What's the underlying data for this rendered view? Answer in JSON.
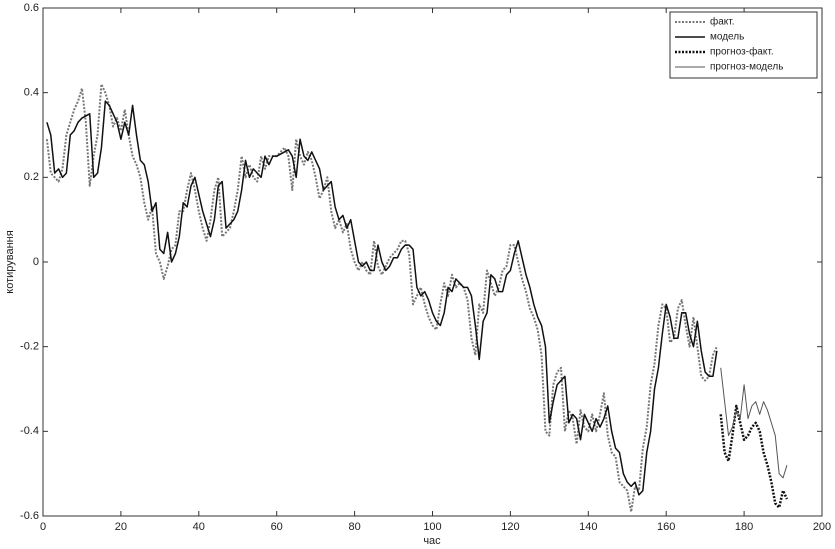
{
  "chart_data": {
    "type": "line",
    "x_label": "час",
    "y_label": "котирування",
    "xlim": [
      0,
      200
    ],
    "xticks": [
      0,
      20,
      40,
      60,
      80,
      100,
      120,
      140,
      160,
      180,
      200
    ],
    "ylim": [
      -0.6,
      0.6
    ],
    "yticks": [
      -0.6,
      -0.4,
      -0.2,
      0,
      0.2,
      0.4,
      0.6
    ],
    "grid": false,
    "legend": "upper right",
    "series": [
      {
        "name": "факт.",
        "color": "#777777",
        "line_style": "dotted",
        "x": [
          1,
          2,
          3,
          4,
          5,
          6,
          7,
          8,
          9,
          10,
          11,
          12,
          13,
          14,
          15,
          16,
          17,
          18,
          19,
          20,
          21,
          22,
          23,
          24,
          25,
          26,
          27,
          28,
          29,
          30,
          31,
          32,
          33,
          34,
          35,
          36,
          37,
          38,
          39,
          40,
          41,
          42,
          43,
          44,
          45,
          46,
          47,
          48,
          49,
          50,
          51,
          52,
          53,
          54,
          55,
          56,
          57,
          58,
          59,
          60,
          61,
          62,
          63,
          64,
          65,
          66,
          67,
          68,
          69,
          70,
          71,
          72,
          73,
          74,
          75,
          76,
          77,
          78,
          79,
          80,
          81,
          82,
          83,
          84,
          85,
          86,
          87,
          88,
          89,
          90,
          91,
          92,
          93,
          94,
          95,
          96,
          97,
          98,
          99,
          100,
          101,
          102,
          103,
          104,
          105,
          106,
          107,
          108,
          109,
          110,
          111,
          112,
          113,
          114,
          115,
          116,
          117,
          118,
          119,
          120,
          121,
          122,
          123,
          124,
          125,
          126,
          127,
          128,
          129,
          130,
          131,
          132,
          133,
          134,
          135,
          136,
          137,
          138,
          139,
          140,
          141,
          142,
          143,
          144,
          145,
          146,
          147,
          148,
          149,
          150,
          151,
          152,
          153,
          154,
          155,
          156,
          157,
          158,
          159,
          160,
          161,
          162,
          163,
          164,
          165,
          166,
          167,
          168,
          169,
          170,
          171,
          172,
          173
        ],
        "values": [
          0.29,
          0.21,
          0.2,
          0.19,
          0.22,
          0.3,
          0.33,
          0.36,
          0.38,
          0.41,
          0.33,
          0.18,
          0.25,
          0.3,
          0.42,
          0.4,
          0.37,
          0.32,
          0.34,
          0.31,
          0.36,
          0.3,
          0.25,
          0.23,
          0.2,
          0.14,
          0.1,
          0.13,
          0.02,
          0,
          -0.04,
          -0.01,
          0.03,
          0.04,
          0.12,
          0.12,
          0.17,
          0.21,
          0.17,
          0.12,
          0.08,
          0.05,
          0.1,
          0.17,
          0.2,
          0.06,
          0.07,
          0.08,
          0.12,
          0.17,
          0.25,
          0.2,
          0.23,
          0.2,
          0.19,
          0.25,
          0.22,
          0.25,
          0.25,
          0.25,
          0.26,
          0.27,
          0.25,
          0.17,
          0.29,
          0.25,
          0.23,
          0.26,
          0.24,
          0.2,
          0.15,
          0.17,
          0.2,
          0.12,
          0.08,
          0.1,
          0.07,
          0.09,
          0.03,
          0,
          -0.02,
          0,
          -0.02,
          -0.03,
          0.05,
          -0.01,
          -0.03,
          -0.01,
          0.01,
          0.02,
          0.03,
          0.05,
          0.05,
          0.02,
          -0.1,
          -0.08,
          -0.06,
          -0.1,
          -0.13,
          -0.15,
          -0.16,
          -0.1,
          -0.05,
          -0.08,
          -0.03,
          -0.06,
          -0.05,
          -0.06,
          -0.09,
          -0.18,
          -0.22,
          -0.1,
          -0.12,
          -0.02,
          -0.05,
          -0.08,
          -0.06,
          -0.02,
          -0.01,
          0.04,
          0.04,
          0,
          -0.04,
          -0.07,
          -0.11,
          -0.13,
          -0.16,
          -0.22,
          -0.4,
          -0.41,
          -0.29,
          -0.26,
          -0.25,
          -0.4,
          -0.35,
          -0.37,
          -0.43,
          -0.35,
          -0.39,
          -0.4,
          -0.36,
          -0.4,
          -0.36,
          -0.31,
          -0.41,
          -0.45,
          -0.46,
          -0.52,
          -0.53,
          -0.54,
          -0.59,
          -0.53,
          -0.54,
          -0.44,
          -0.39,
          -0.29,
          -0.24,
          -0.15,
          -0.1,
          -0.11,
          -0.19,
          -0.18,
          -0.11,
          -0.09,
          -0.15,
          -0.2,
          -0.13,
          -0.2,
          -0.27,
          -0.28,
          -0.27,
          -0.22,
          -0.2
        ]
      },
      {
        "name": "модель",
        "color": "#111111",
        "line_style": "solid",
        "x": [
          1,
          2,
          3,
          4,
          5,
          6,
          7,
          8,
          9,
          10,
          11,
          12,
          13,
          14,
          15,
          16,
          17,
          18,
          19,
          20,
          21,
          22,
          23,
          24,
          25,
          26,
          27,
          28,
          29,
          30,
          31,
          32,
          33,
          34,
          35,
          36,
          37,
          38,
          39,
          40,
          41,
          42,
          43,
          44,
          45,
          46,
          47,
          48,
          49,
          50,
          51,
          52,
          53,
          54,
          55,
          56,
          57,
          58,
          59,
          60,
          61,
          62,
          63,
          64,
          65,
          66,
          67,
          68,
          69,
          70,
          71,
          72,
          73,
          74,
          75,
          76,
          77,
          78,
          79,
          80,
          81,
          82,
          83,
          84,
          85,
          86,
          87,
          88,
          89,
          90,
          91,
          92,
          93,
          94,
          95,
          96,
          97,
          98,
          99,
          100,
          101,
          102,
          103,
          104,
          105,
          106,
          107,
          108,
          109,
          110,
          111,
          112,
          113,
          114,
          115,
          116,
          117,
          118,
          119,
          120,
          121,
          122,
          123,
          124,
          125,
          126,
          127,
          128,
          129,
          130,
          131,
          132,
          133,
          134,
          135,
          136,
          137,
          138,
          139,
          140,
          141,
          142,
          143,
          144,
          145,
          146,
          147,
          148,
          149,
          150,
          151,
          152,
          153,
          154,
          155,
          156,
          157,
          158,
          159,
          160,
          161,
          162,
          163,
          164,
          165,
          166,
          167,
          168,
          169,
          170,
          171,
          172,
          173
        ],
        "values": [
          0.33,
          0.3,
          0.21,
          0.22,
          0.2,
          0.21,
          0.3,
          0.31,
          0.33,
          0.34,
          0.345,
          0.35,
          0.2,
          0.21,
          0.27,
          0.38,
          0.37,
          0.35,
          0.33,
          0.29,
          0.33,
          0.3,
          0.37,
          0.3,
          0.24,
          0.23,
          0.19,
          0.12,
          0.14,
          0.03,
          0.02,
          0.07,
          0,
          0.02,
          0.06,
          0.14,
          0.13,
          0.18,
          0.2,
          0.16,
          0.12,
          0.09,
          0.06,
          0.1,
          0.18,
          0.19,
          0.08,
          0.09,
          0.1,
          0.12,
          0.17,
          0.24,
          0.2,
          0.22,
          0.21,
          0.2,
          0.25,
          0.23,
          0.25,
          0.25,
          0.255,
          0.26,
          0.265,
          0.25,
          0.2,
          0.29,
          0.25,
          0.24,
          0.26,
          0.24,
          0.22,
          0.17,
          0.18,
          0.19,
          0.13,
          0.1,
          0.11,
          0.08,
          0.1,
          0.05,
          0,
          -0.01,
          0,
          -0.02,
          -0.02,
          0.04,
          0,
          -0.02,
          -0.01,
          0.01,
          0.01,
          0.03,
          0.04,
          0.04,
          0.03,
          -0.06,
          -0.08,
          -0.07,
          -0.09,
          -0.12,
          -0.14,
          -0.15,
          -0.12,
          -0.06,
          -0.07,
          -0.04,
          -0.05,
          -0.06,
          -0.06,
          -0.08,
          -0.15,
          -0.23,
          -0.14,
          -0.12,
          -0.03,
          -0.04,
          -0.07,
          -0.07,
          -0.03,
          -0.02,
          0.02,
          0.05,
          0.01,
          -0.03,
          -0.06,
          -0.1,
          -0.13,
          -0.15,
          -0.2,
          -0.38,
          -0.33,
          -0.29,
          -0.28,
          -0.27,
          -0.38,
          -0.36,
          -0.37,
          -0.42,
          -0.36,
          -0.38,
          -0.4,
          -0.37,
          -0.39,
          -0.37,
          -0.34,
          -0.4,
          -0.44,
          -0.45,
          -0.5,
          -0.52,
          -0.53,
          -0.52,
          -0.55,
          -0.54,
          -0.45,
          -0.4,
          -0.3,
          -0.25,
          -0.17,
          -0.1,
          -0.13,
          -0.18,
          -0.18,
          -0.12,
          -0.12,
          -0.17,
          -0.2,
          -0.14,
          -0.21,
          -0.26,
          -0.27,
          -0.27,
          -0.21
        ]
      },
      {
        "name": "прогноз-факт.",
        "color": "#111111",
        "line_style": "dotted",
        "x": [
          174,
          175,
          176,
          177,
          178,
          179,
          180,
          181,
          182,
          183,
          184,
          185,
          186,
          187,
          188,
          189,
          190,
          191
        ],
        "values": [
          -0.36,
          -0.45,
          -0.47,
          -0.41,
          -0.34,
          -0.38,
          -0.42,
          -0.41,
          -0.39,
          -0.38,
          -0.4,
          -0.45,
          -0.48,
          -0.52,
          -0.57,
          -0.58,
          -0.54,
          -0.56
        ]
      },
      {
        "name": "прогноз-модель",
        "color": "#555555",
        "line_style": "solid",
        "x": [
          174,
          175,
          176,
          177,
          178,
          179,
          180,
          181,
          182,
          183,
          184,
          185,
          186,
          187,
          188,
          189,
          190,
          191
        ],
        "values": [
          -0.25,
          -0.33,
          -0.41,
          -0.39,
          -0.35,
          -0.37,
          -0.29,
          -0.37,
          -0.34,
          -0.33,
          -0.36,
          -0.33,
          -0.35,
          -0.38,
          -0.41,
          -0.5,
          -0.51,
          -0.48
        ]
      }
    ]
  }
}
